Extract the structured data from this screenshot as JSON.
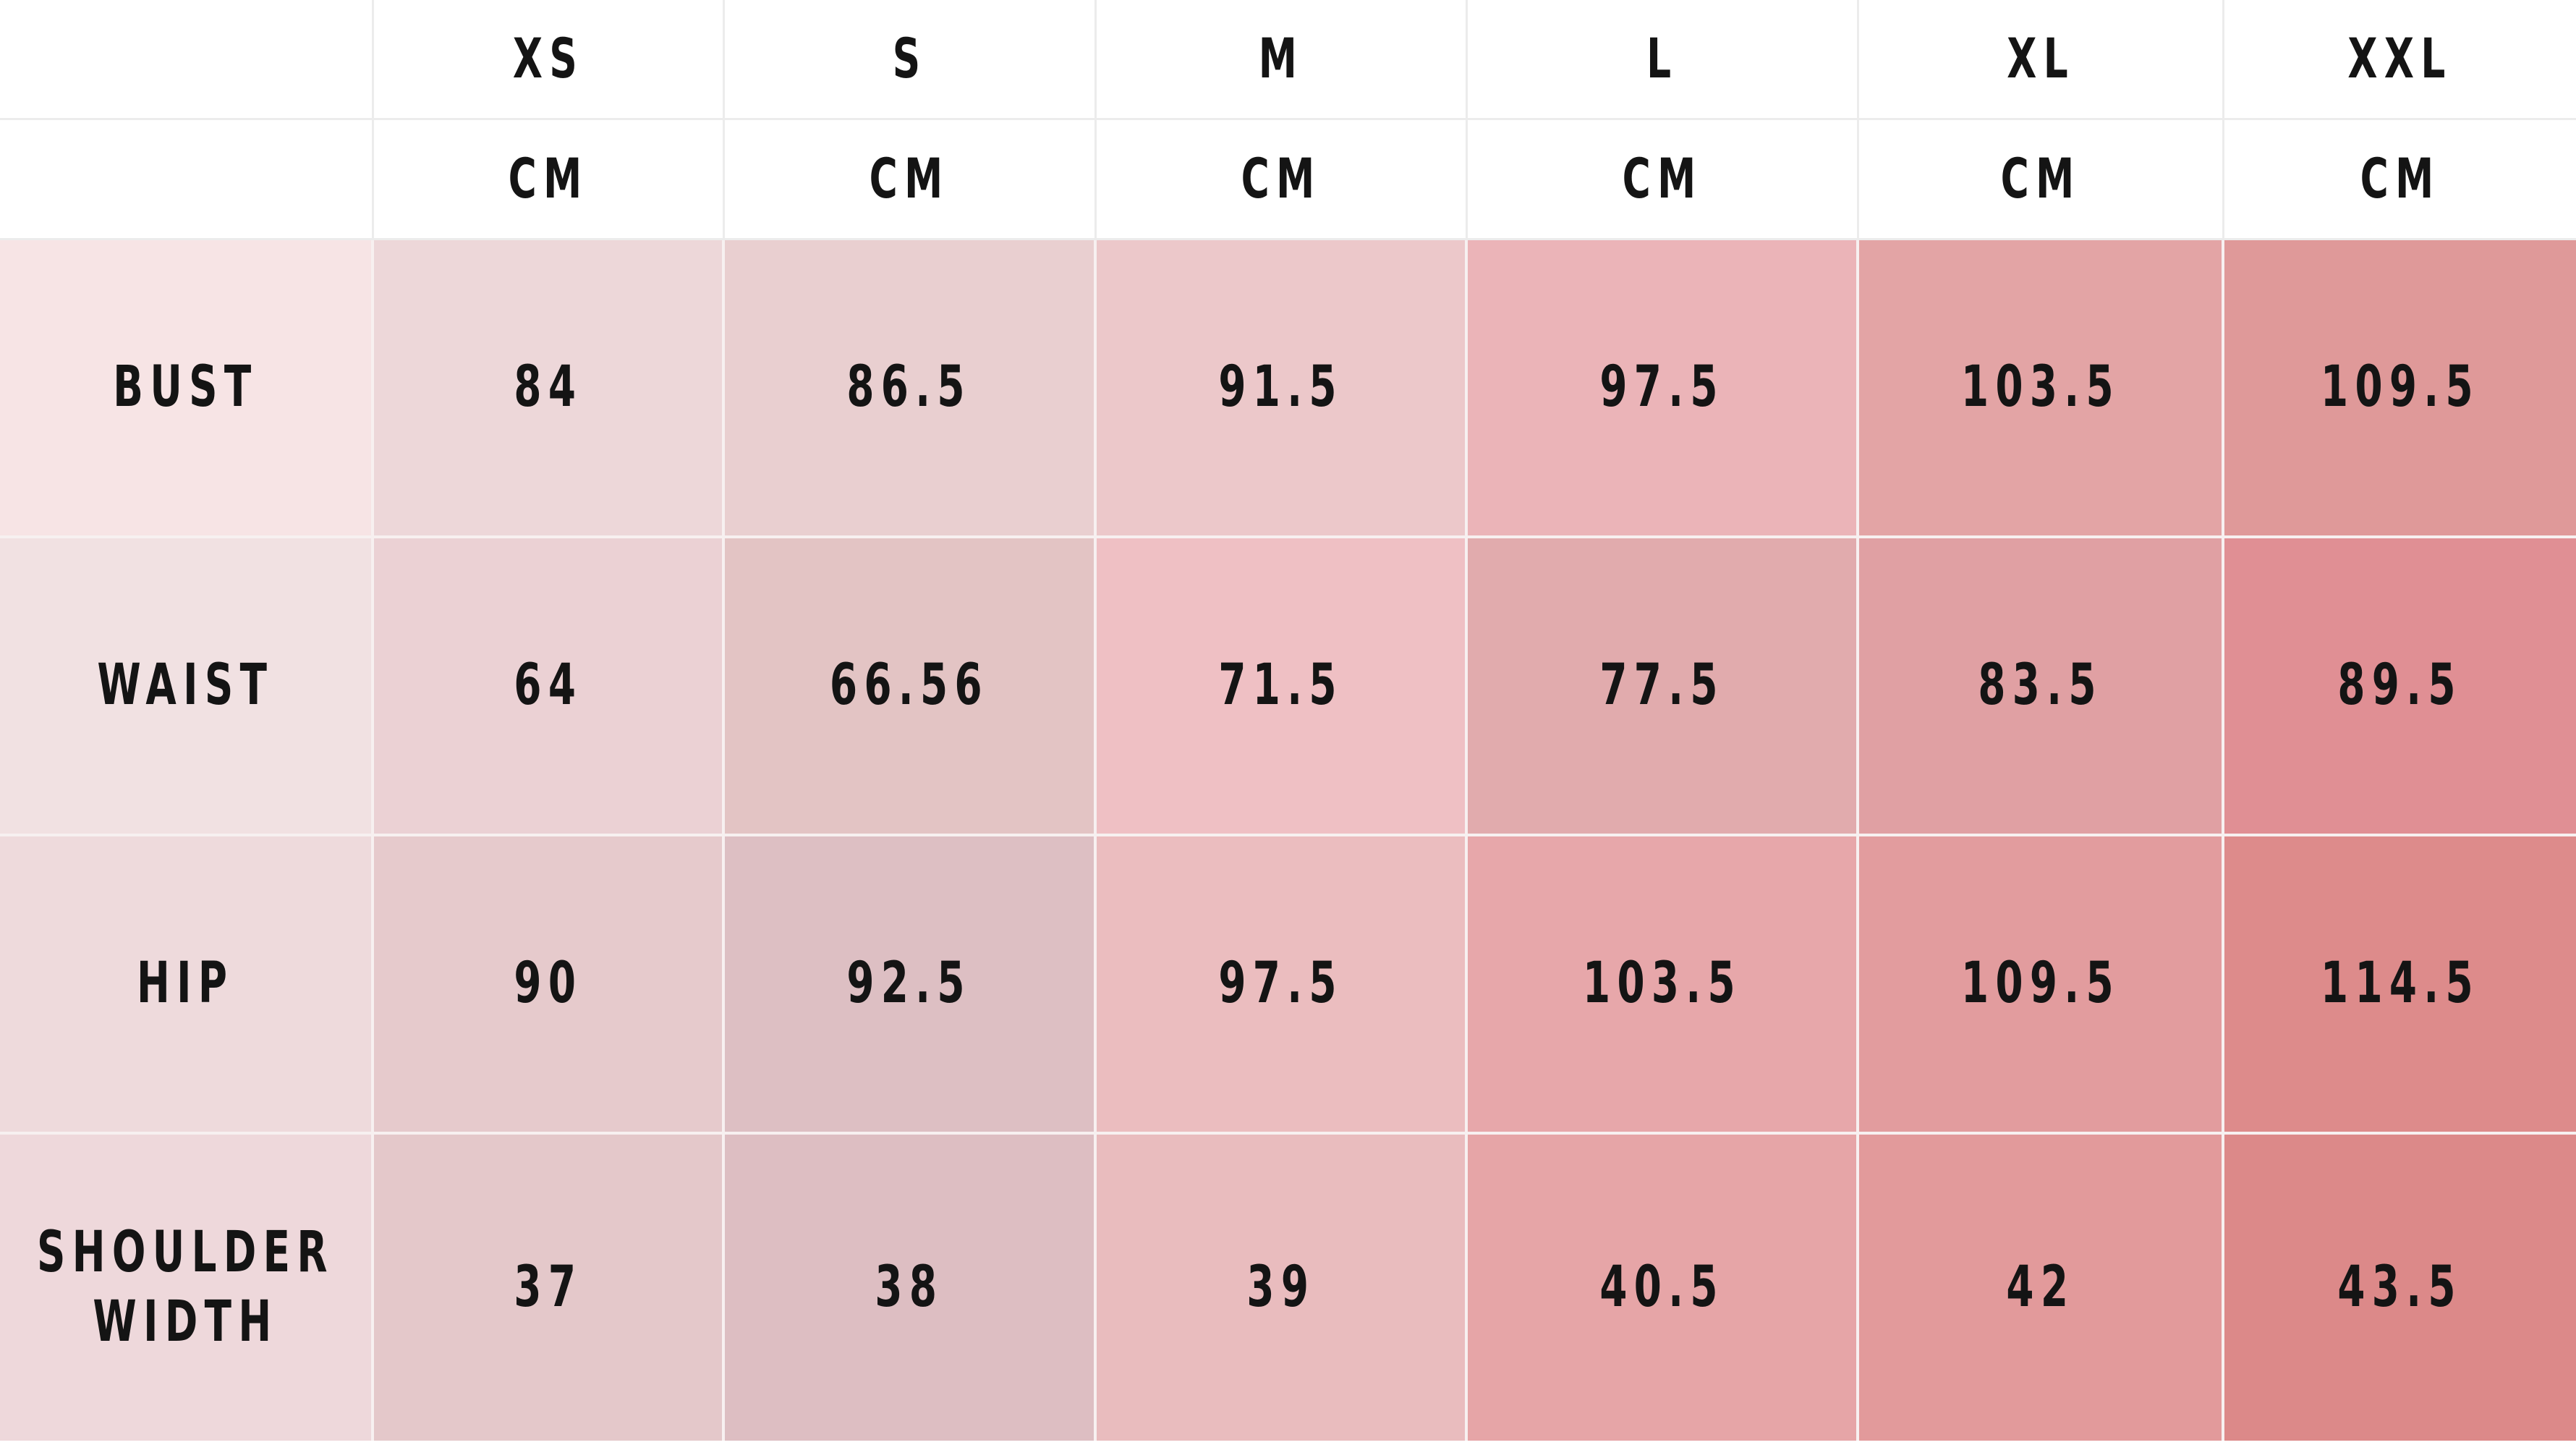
{
  "table": {
    "sizes": [
      "XS",
      "S",
      "M",
      "L",
      "XL",
      "XXL"
    ],
    "units": [
      "CM",
      "CM",
      "CM",
      "CM",
      "CM",
      "CM"
    ],
    "rows": [
      {
        "label": "BUST",
        "values": [
          "84",
          "86.5",
          "91.5",
          "97.5",
          "103.5",
          "109.5"
        ]
      },
      {
        "label": "WAIST",
        "values": [
          "64",
          "66.56",
          "71.5",
          "77.5",
          "83.5",
          "89.5"
        ]
      },
      {
        "label": "HIP",
        "values": [
          "90",
          "92.5",
          "97.5",
          "103.5",
          "109.5",
          "114.5"
        ]
      },
      {
        "label": "SHOULDER WIDTH",
        "values": [
          "37",
          "38",
          "39",
          "40.5",
          "42",
          "43.5"
        ]
      }
    ]
  },
  "colors": {
    "header_bg": "#ffffff",
    "grid_line": "#ececec",
    "cell_border": "#f7f0f0",
    "text": "#141414",
    "cells": [
      [
        "#f7e4e5",
        "#edd7d9",
        "#e9cfd0",
        "#ecc8ca",
        "#ebb4b8",
        "#e3a4a5",
        "#df9999"
      ],
      [
        "#f1e1e2",
        "#ebd1d4",
        "#e3c4c4",
        "#efc0c4",
        "#e1abad",
        "#e0a0a3",
        "#e08f94"
      ],
      [
        "#eedadc",
        "#e6cacc",
        "#ddbfc3",
        "#ebbdbf",
        "#e7a7aa",
        "#e29c9e",
        "#dd8b8b"
      ],
      [
        "#eed8db",
        "#e4c8ca",
        "#ddbec2",
        "#e9bcbe",
        "#e6a5a7",
        "#e29a9b",
        "#dc8989"
      ]
    ]
  }
}
